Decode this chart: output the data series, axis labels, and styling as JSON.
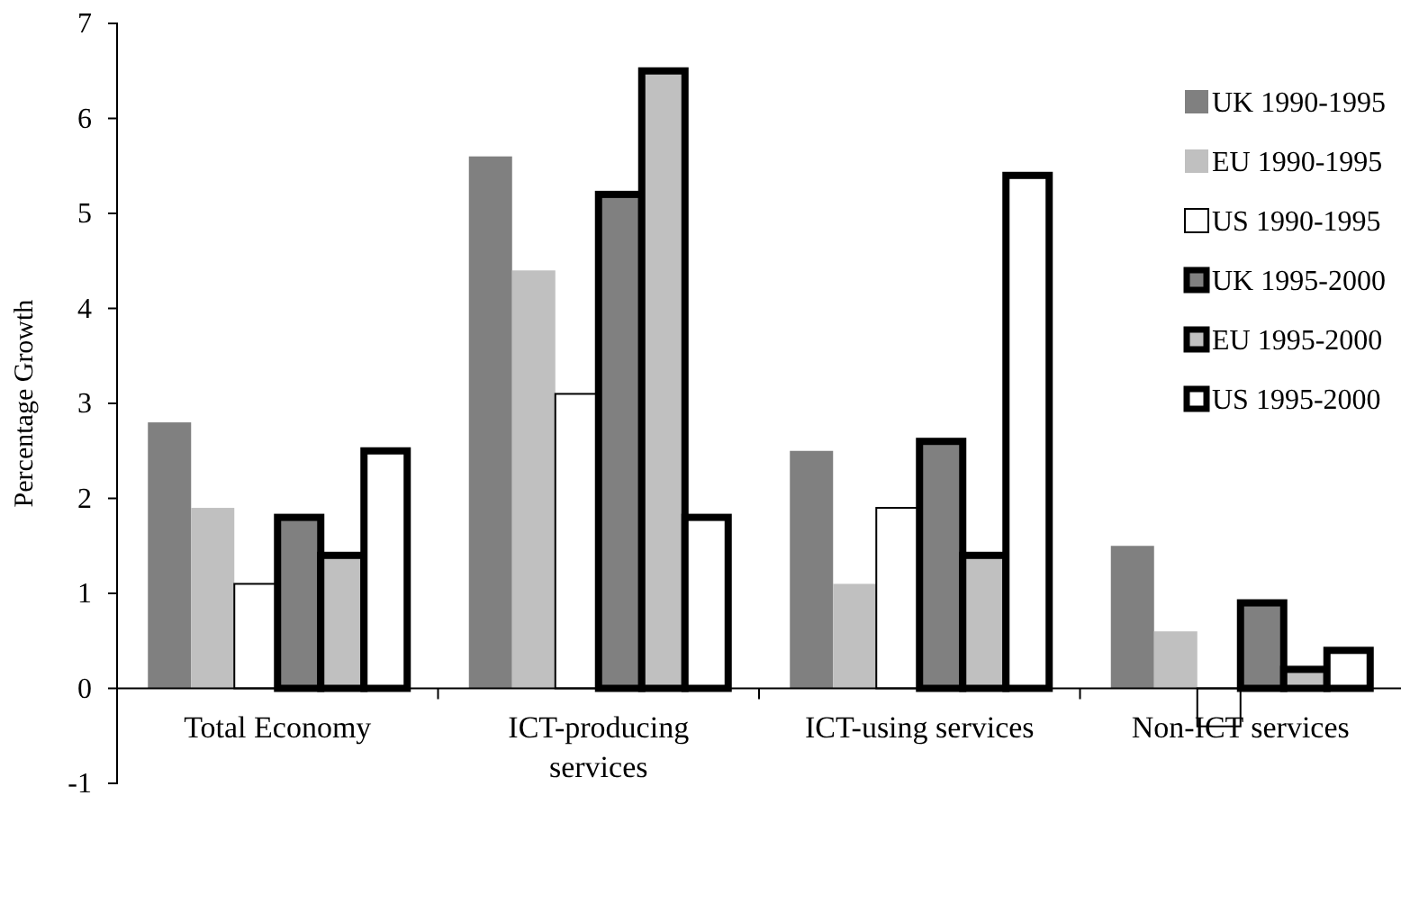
{
  "chart_data": {
    "type": "bar",
    "ylabel": "Percentage Growth",
    "categories": [
      "Total Economy",
      "ICT-producing services",
      "ICT-using services",
      "Non-ICT services"
    ],
    "series": [
      {
        "name": "UK 1990-1995",
        "color": "#808080",
        "values": [
          2.8,
          5.6,
          2.5,
          1.5
        ]
      },
      {
        "name": "EU 1990-1995",
        "color": "#c0c0c0",
        "values": [
          1.9,
          4.4,
          1.1,
          0.6
        ]
      },
      {
        "name": "US 1990-1995",
        "color": "#ffffff",
        "values": [
          1.1,
          3.1,
          1.9,
          -0.4
        ]
      },
      {
        "name": "UK 1995-2000",
        "color": "#808080",
        "values": [
          1.8,
          5.2,
          2.6,
          0.9
        ]
      },
      {
        "name": "EU 1995-2000",
        "color": "#c0c0c0",
        "values": [
          1.4,
          6.5,
          1.4,
          0.2
        ]
      },
      {
        "name": "US 1995-2000",
        "color": "#ffffff",
        "values": [
          2.5,
          1.8,
          5.4,
          0.4
        ]
      }
    ],
    "ylim": [
      -1,
      7
    ],
    "yticks": [
      -1,
      0,
      1,
      2,
      3,
      4,
      5,
      6,
      7
    ],
    "grid": false,
    "legend": "top right"
  }
}
